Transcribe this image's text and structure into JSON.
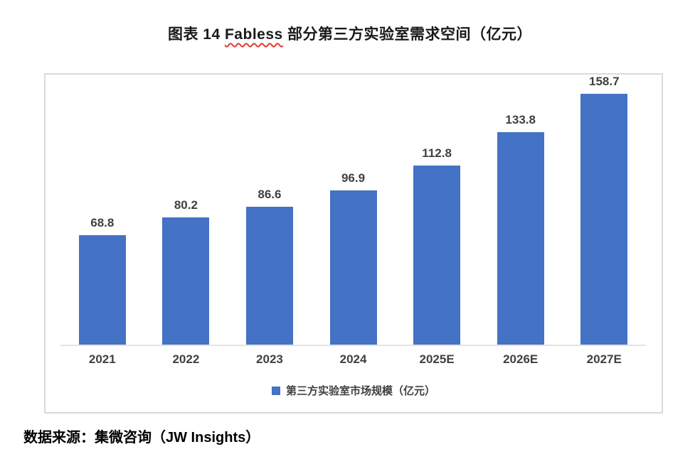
{
  "title": {
    "prefix": "图表 14 ",
    "underlined": "Fabless",
    "suffix": " 部分第三方实验室需求空间（亿元）"
  },
  "legend": {
    "label": "第三方实验室市场规模（亿元）"
  },
  "source": "数据来源：集微咨询（JW Insights）",
  "colors": {
    "bar": "#4472c4",
    "frame_border": "#dadada",
    "axis_line": "#e4e4e4",
    "label_text": "#404040",
    "squiggle": "#e03c31"
  },
  "chart_data": {
    "type": "bar",
    "title": "图表 14 Fabless 部分第三方实验室需求空间（亿元）",
    "categories": [
      "2021",
      "2022",
      "2023",
      "2024",
      "2025E",
      "2026E",
      "2027E"
    ],
    "series": [
      {
        "name": "第三方实验室市场规模（亿元）",
        "values": [
          68.8,
          80.2,
          86.6,
          96.9,
          112.8,
          133.8,
          158.7
        ]
      }
    ],
    "data_labels": [
      "68.8",
      "80.2",
      "86.6",
      "96.9",
      "112.8",
      "133.8",
      "158.7"
    ],
    "xlabel": "",
    "ylabel": "",
    "ylim": [
      0,
      170
    ],
    "grid": false,
    "y_axis_visible": false,
    "legend_position": "bottom"
  }
}
